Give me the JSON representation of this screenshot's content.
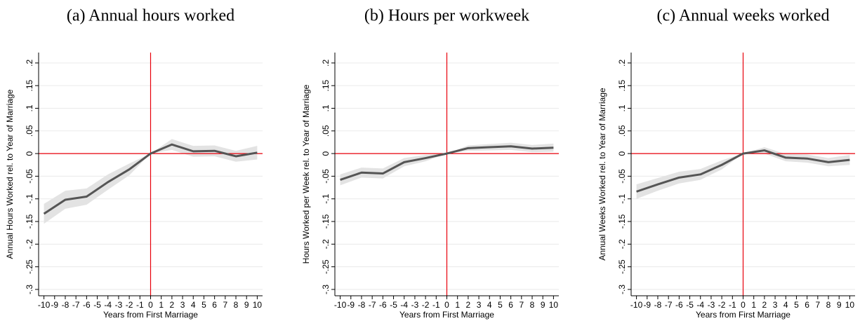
{
  "chart_data": [
    {
      "type": "line",
      "title": "(a) Annual hours worked",
      "ylabel": "Annual Hours Worked rel. to Year of Marriage",
      "xlabel": "Years from First Marriage",
      "x": [
        -10,
        -8,
        -6,
        -4,
        -2,
        0,
        2,
        4,
        6,
        8,
        10
      ],
      "values": [
        -0.133,
        -0.102,
        -0.095,
        -0.063,
        -0.035,
        0,
        0.02,
        0.005,
        0.006,
        -0.006,
        0.002
      ],
      "ci_lower": [
        -0.155,
        -0.122,
        -0.113,
        -0.08,
        -0.048,
        0,
        0.008,
        -0.007,
        -0.006,
        -0.018,
        -0.013
      ],
      "ci_upper": [
        -0.111,
        -0.082,
        -0.077,
        -0.046,
        -0.022,
        0,
        0.032,
        0.017,
        0.018,
        0.006,
        0.017
      ],
      "color": "#555555",
      "band_color": "#e3e3e3",
      "ref_color": "#e8000b",
      "hline": 0,
      "vline": 0,
      "xlim": [
        -10.5,
        10.5
      ],
      "ylim": [
        -0.314,
        0.223
      ],
      "xticks": [
        -10,
        -9,
        -8,
        -7,
        -6,
        -5,
        -4,
        -3,
        -2,
        -1,
        0,
        1,
        2,
        3,
        4,
        5,
        6,
        7,
        8,
        9,
        10
      ],
      "yticks": [
        {
          "value": 0.2,
          "label": ".2"
        },
        {
          "value": 0.15,
          "label": ".15"
        },
        {
          "value": 0.1,
          "label": ".1"
        },
        {
          "value": 0.05,
          "label": ".05"
        },
        0,
        {
          "value": -0.05,
          "label": "-.05"
        },
        {
          "value": -0.1,
          "label": "-.1"
        },
        {
          "value": -0.15,
          "label": "-.15"
        },
        {
          "value": -0.2,
          "label": "-.2"
        },
        {
          "value": -0.25,
          "label": "-.25"
        },
        {
          "value": -0.3,
          "label": "-.3"
        }
      ],
      "grid": true
    },
    {
      "type": "line",
      "title": "(b) Hours per workweek",
      "ylabel": "Hours Worked per Week rel. to Year of Marriage",
      "xlabel": "Years from First Marriage",
      "x": [
        -10,
        -8,
        -6,
        -4,
        -2,
        0,
        2,
        4,
        6,
        8,
        10
      ],
      "values": [
        -0.058,
        -0.042,
        -0.044,
        -0.019,
        -0.01,
        0,
        0.012,
        0.014,
        0.016,
        0.011,
        0.013
      ],
      "ci_lower": [
        -0.07,
        -0.053,
        -0.055,
        -0.028,
        -0.017,
        0,
        0.006,
        0.007,
        0.008,
        0.003,
        0.004
      ],
      "ci_upper": [
        -0.046,
        -0.031,
        -0.033,
        -0.01,
        -0.003,
        0,
        0.018,
        0.021,
        0.024,
        0.019,
        0.022
      ],
      "color": "#555555",
      "band_color": "#e3e3e3",
      "ref_color": "#e8000b",
      "hline": 0,
      "vline": 0,
      "xlim": [
        -10.5,
        10.5
      ],
      "ylim": [
        -0.314,
        0.223
      ],
      "xticks": [
        -10,
        -9,
        -8,
        -7,
        -6,
        -5,
        -4,
        -3,
        -2,
        -1,
        0,
        1,
        2,
        3,
        4,
        5,
        6,
        7,
        8,
        9,
        10
      ],
      "yticks": [
        {
          "value": 0.2,
          "label": ".2"
        },
        {
          "value": 0.15,
          "label": ".15"
        },
        {
          "value": 0.1,
          "label": ".1"
        },
        {
          "value": 0.05,
          "label": ".05"
        },
        0,
        {
          "value": -0.05,
          "label": "-.05"
        },
        {
          "value": -0.1,
          "label": "-.1"
        },
        {
          "value": -0.15,
          "label": "-.15"
        },
        {
          "value": -0.2,
          "label": "-.2"
        },
        {
          "value": -0.25,
          "label": "-.25"
        },
        {
          "value": -0.3,
          "label": "-.3"
        }
      ],
      "grid": true
    },
    {
      "type": "line",
      "title": "(c) Annual weeks worked",
      "ylabel": "Annual Weeks Worked rel. to Year of Marriage",
      "xlabel": "Years from First Marriage",
      "x": [
        -10,
        -8,
        -6,
        -4,
        -2,
        0,
        2,
        4,
        6,
        8,
        10
      ],
      "values": [
        -0.084,
        -0.068,
        -0.053,
        -0.046,
        -0.025,
        0,
        0.007,
        -0.009,
        -0.011,
        -0.019,
        -0.014
      ],
      "ci_lower": [
        -0.1,
        -0.082,
        -0.066,
        -0.058,
        -0.035,
        0,
        0,
        -0.017,
        -0.02,
        -0.028,
        -0.025
      ],
      "ci_upper": [
        -0.068,
        -0.054,
        -0.04,
        -0.034,
        -0.015,
        0,
        0.014,
        -0.001,
        -0.002,
        -0.01,
        -0.003
      ],
      "color": "#555555",
      "band_color": "#e3e3e3",
      "ref_color": "#e8000b",
      "hline": 0,
      "vline": 0,
      "xlim": [
        -10.5,
        10.5
      ],
      "ylim": [
        -0.314,
        0.223
      ],
      "xticks": [
        -10,
        -9,
        -8,
        -7,
        -6,
        -5,
        -4,
        -3,
        -2,
        -1,
        0,
        1,
        2,
        3,
        4,
        5,
        6,
        7,
        8,
        9,
        10
      ],
      "yticks": [
        {
          "value": 0.2,
          "label": ".2"
        },
        {
          "value": 0.15,
          "label": ".15"
        },
        {
          "value": 0.1,
          "label": ".1"
        },
        {
          "value": 0.05,
          "label": ".05"
        },
        0,
        {
          "value": -0.05,
          "label": "-.05"
        },
        {
          "value": -0.1,
          "label": "-.1"
        },
        {
          "value": -0.15,
          "label": "-.15"
        },
        {
          "value": -0.2,
          "label": "-.2"
        },
        {
          "value": -0.25,
          "label": "-.25"
        },
        {
          "value": -0.3,
          "label": "-.3"
        }
      ],
      "grid": true
    }
  ]
}
